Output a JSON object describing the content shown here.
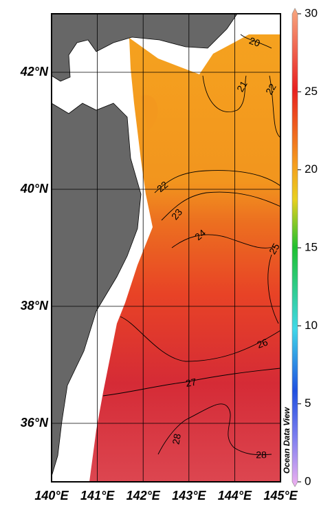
{
  "map": {
    "xlim": [
      140,
      145
    ],
    "ylim": [
      35,
      43
    ],
    "xticks": [
      {
        "value": 140,
        "label": "140°E"
      },
      {
        "value": 141,
        "label": "141°E"
      },
      {
        "value": 142,
        "label": "142°E"
      },
      {
        "value": 143,
        "label": "143°E"
      },
      {
        "value": 144,
        "label": "144°E"
      },
      {
        "value": 145,
        "label": "145°E"
      }
    ],
    "yticks": [
      {
        "value": 36,
        "label": "36°N"
      },
      {
        "value": 38,
        "label": "38°N"
      },
      {
        "value": 40,
        "label": "40°N"
      },
      {
        "value": 42,
        "label": "42°N"
      }
    ],
    "contour_labels": [
      "20",
      "21",
      "22",
      "22",
      "23",
      "24",
      "25",
      "26",
      "27",
      "28",
      "28"
    ],
    "watermark": "Ocean Data View"
  },
  "colorbar": {
    "lim": [
      0,
      30
    ],
    "ticks": [
      0,
      5,
      10,
      15,
      20,
      25,
      30
    ]
  }
}
